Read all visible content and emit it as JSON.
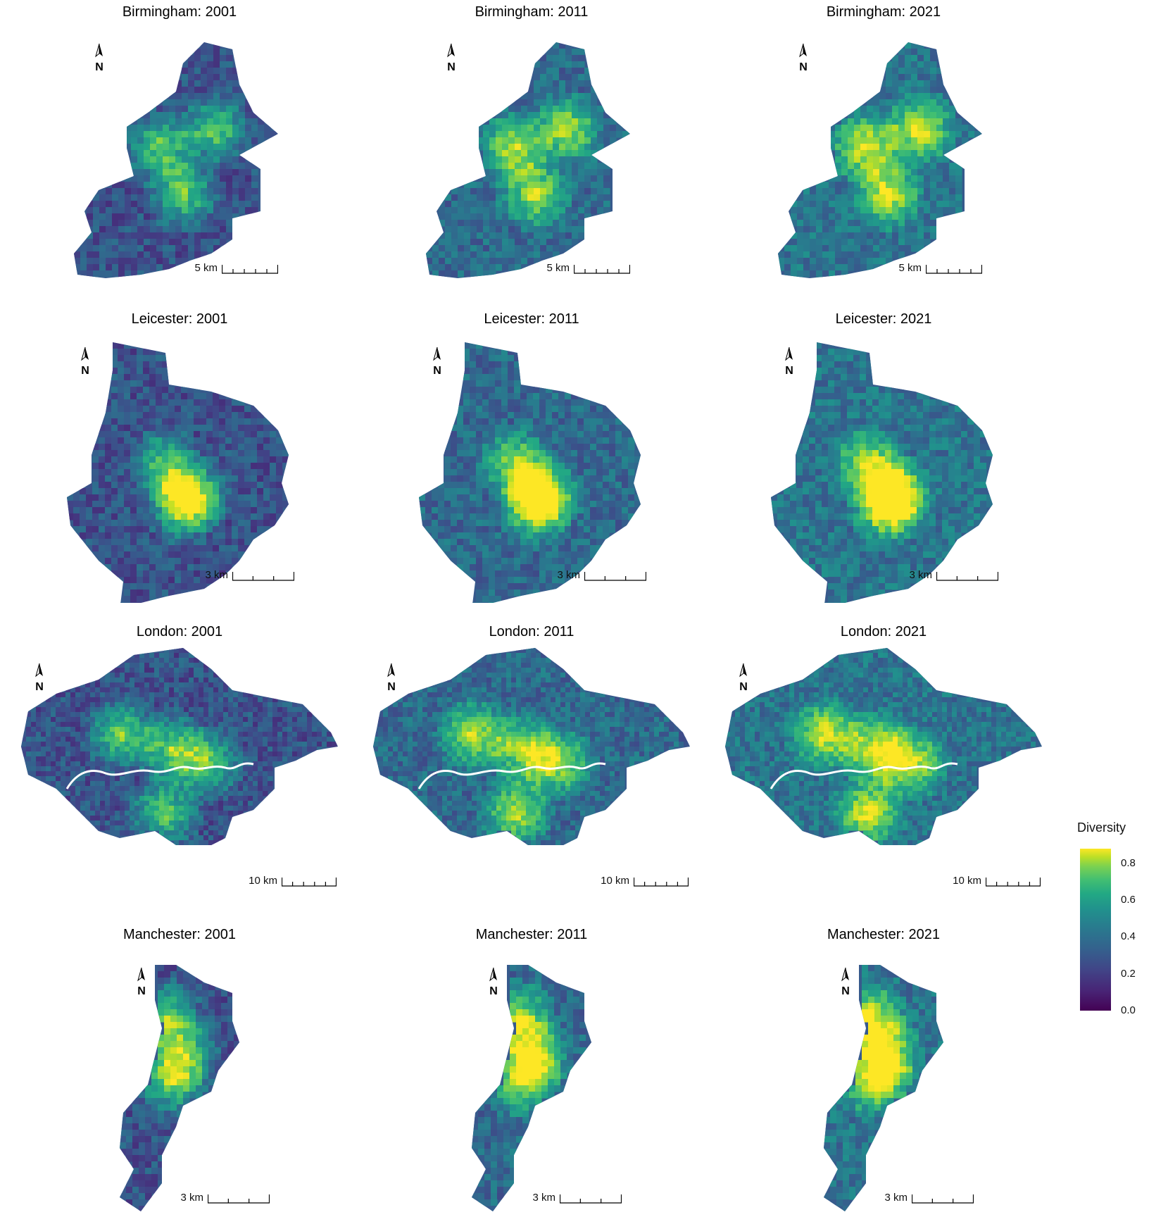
{
  "panels": [
    {
      "title": "Birmingham: 2001",
      "scale": "5 km",
      "shape": "birmingham",
      "year": 2001
    },
    {
      "title": "Birmingham: 2011",
      "scale": "5 km",
      "shape": "birmingham",
      "year": 2011
    },
    {
      "title": "Birmingham: 2021",
      "scale": "5 km",
      "shape": "birmingham",
      "year": 2021
    },
    {
      "title": "Leicester: 2001",
      "scale": "3 km",
      "shape": "leicester",
      "year": 2001
    },
    {
      "title": "Leicester: 2011",
      "scale": "3 km",
      "shape": "leicester",
      "year": 2011
    },
    {
      "title": "Leicester: 2021",
      "scale": "3 km",
      "shape": "leicester",
      "year": 2021
    },
    {
      "title": "London: 2001",
      "scale": "10 km",
      "shape": "london",
      "year": 2001
    },
    {
      "title": "London: 2011",
      "scale": "10 km",
      "shape": "london",
      "year": 2011
    },
    {
      "title": "London: 2021",
      "scale": "10 km",
      "shape": "london",
      "year": 2021
    },
    {
      "title": "Manchester: 2001",
      "scale": "3 km",
      "shape": "manchester",
      "year": 2001
    },
    {
      "title": "Manchester: 2011",
      "scale": "3 km",
      "shape": "manchester",
      "year": 2011
    },
    {
      "title": "Manchester: 2021",
      "scale": "3 km",
      "shape": "manchester",
      "year": 2021
    }
  ],
  "legend": {
    "title": "Diversity",
    "ticks": [
      "0.8",
      "0.6",
      "0.4",
      "0.2",
      "0.0"
    ],
    "tick_values": [
      0.8,
      0.6,
      0.4,
      0.2,
      0.0
    ],
    "range": [
      0.0,
      0.88
    ],
    "palette": "viridis"
  },
  "colors": {
    "low": "#440154",
    "mid": "#2a788e",
    "high": "#fde725",
    "river": "#ffffff"
  }
}
